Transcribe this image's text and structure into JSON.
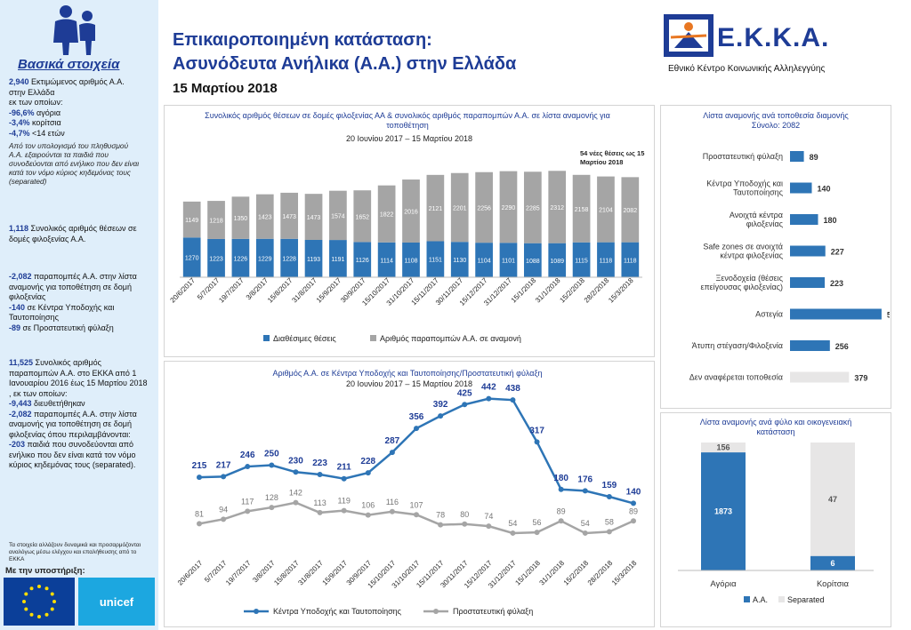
{
  "header": {
    "title_line1": "Επικαιροποιημένη κατάσταση:",
    "title_line2": "Ασυνόδευτα Ανήλικα (Α.Α.) στην Ελλάδα",
    "date": "15 Μαρτίου 2018",
    "logo_text": "Ε.Κ.Κ.Α.",
    "logo_subtitle": "Εθνικό Κέντρο Κοινωνικής Αλληλεγγύης"
  },
  "sidebar": {
    "title": "Βασικά στοιχεία",
    "b1_hl": "2,940",
    "b1_text": " Εκτιμώμενος αριθμός Α.Α. στην Ελλάδα",
    "b1_sub": "εκ των οποίων:",
    "b1_l1_hl": "-96,6%",
    "b1_l1": " αγόρια",
    "b1_l2_hl": "-3,4%",
    "b1_l2": " κορίτσια",
    "b1_l3_hl": "-4,7%",
    "b1_l3": " <14 ετών",
    "b1_italic": "Από τον υπολογισμό του πληθυσμού Α.Α. εξαιρούνται τα παιδιά που συνοδεύονται από ενήλικο που δεν είναι κατά τον νόμο κύριος κηδεμόνας τους (separated)",
    "b2_hl": "1,118",
    "b2_text": " Συνολικός αριθμός θέσεων σε δομές φιλοξενίας Α.Α.",
    "b3_l1_hl": "-2,082",
    "b3_l1": " παραπομπές Α.Α. στην λίστα αναμονής για τοποθέτηση σε δομή φιλοξενίας",
    "b3_l2_hl": "-140",
    "b3_l2": " σε Κέντρα Υποδοχής και Ταυτοποίησης",
    "b3_l3_hl": "-89",
    "b3_l3": " σε Προστατευτική φύλαξη",
    "b4_hl": "11,525",
    "b4_text": " Συνολικός αριθμός παραπομπών Α.Α. στο ΕΚΚΑ από 1 Ιανουαρίου 2016 έως 15 Μαρτίου 2018 , εκ των οποίων:",
    "b4_l1_hl": "-9,443",
    "b4_l1": " διευθετήθηκαν",
    "b4_l2_hl": "-2,082",
    "b4_l2": " παραπομπές Α.Α. στην λίστα αναμονής για τοποθέτηση σε δομή φιλοξενίας όπου περιλαμβάνονται:",
    "b4_l3_hl": "-203",
    "b4_l3": " παιδιά που συνοδεύονται από ενήλικο που δεν είναι κατά τον νόμο κύριος κηδεμόνας τους (separated).",
    "note": "Τα στοιχεία αλλάζουν δυναμικά και προσαρμόζονται αναλόγως μέσω ελέγχου και επαλήθευσης από το ΕΚΚΑ",
    "support": "Με την υποστήριξη:",
    "unicef": "unicef"
  },
  "chart_data": [
    {
      "type": "bar",
      "stacked": true,
      "title": "Συνολικός αριθμός θέσεων σε δομές φιλοξενίας ΑΑ & συνολικός αριθμός παραπομπών Α.Α. σε λίστα αναμονής για τοποθέτηση",
      "subtitle": "20 Ιουνίου 2017 – 15 Μαρτίου 2018",
      "annotation": "54 νέες θέσεις ως 15 Μαρτίου 2018",
      "categories": [
        "20/6/2017",
        "5/7/2017",
        "19/7/2017",
        "3/8/2017",
        "15/8/2017",
        "31/8/2017",
        "15/9/2017",
        "30/9/2017",
        "15/10/2017",
        "31/10/2017",
        "15/11/2017",
        "30/11/2017",
        "15/12/2017",
        "31/12/2017",
        "15/1/2018",
        "31/1/2018",
        "15/2/2018",
        "28/2/2018",
        "15/3/2018"
      ],
      "series": [
        {
          "name": "Διαθέσιμες θέσεις",
          "color": "#2e75b6",
          "values": [
            1270,
            1223,
            1226,
            1229,
            1228,
            1193,
            1191,
            1126,
            1114,
            1108,
            1151,
            1130,
            1104,
            1101,
            1088,
            1089,
            1115,
            1118,
            1118
          ]
        },
        {
          "name": "Αριθμός παραπομπών Α.Α. σε αναμονή",
          "color": "#a5a5a5",
          "values": [
            1149,
            1218,
            1350,
            1423,
            1473,
            1473,
            1574,
            1652,
            1822,
            2016,
            2121,
            2201,
            2256,
            2290,
            2285,
            2312,
            2158,
            2104,
            2082
          ]
        }
      ]
    },
    {
      "type": "line",
      "title": "Αριθμός Α.Α. σε Κέντρα Υποδοχής και Ταυτοποίησης/Προστατευτική φύλαξη",
      "subtitle": "20 Ιουνίου 2017 – 15 Μαρτίου 2018",
      "categories": [
        "20/6/2017",
        "5/7/2017",
        "19/7/2017",
        "3/8/2017",
        "15/8/2017",
        "31/8/2017",
        "15/9/2017",
        "30/9/2017",
        "15/10/2017",
        "31/10/2017",
        "15/11/2017",
        "30/11/2017",
        "15/12/2017",
        "31/12/2017",
        "15/1/2018",
        "31/1/2018",
        "15/2/2018",
        "28/2/2018",
        "15/3/2018"
      ],
      "series": [
        {
          "name": "Κέντρα Υποδοχής και Ταυτοποίησης",
          "color": "#2e75b6",
          "values": [
            215,
            217,
            246,
            250,
            230,
            223,
            211,
            228,
            287,
            356,
            392,
            425,
            442,
            438,
            317,
            180,
            176,
            159,
            140
          ]
        },
        {
          "name": "Προστατευτική φύλαξη",
          "color": "#a5a5a5",
          "values": [
            81,
            94,
            117,
            128,
            142,
            113,
            119,
            106,
            116,
            107,
            78,
            80,
            74,
            54,
            56,
            89,
            54,
            58,
            89
          ]
        }
      ]
    },
    {
      "type": "bar",
      "orientation": "horizontal",
      "title": "Λίστα αναμονής ανά τοποθεσία διαμονής",
      "subtitle": "Σύνολο: 2082",
      "categories": [
        "Προστατευτική φύλαξη",
        "Κέντρα Υποδοχής και Ταυτοποίησης",
        "Ανοιχτά κέντρα φιλοξενίας",
        "Safe zones σε ανοιχτά κέντρα φιλοξενίας",
        "Ξενοδοχεία (θέσεις επείγουσας φιλοξενίας)",
        "Αστεγία",
        "Άτυπη στέγαση/Φιλοξενία",
        "Δεν αναφέρεται τοποθεσία"
      ],
      "values": [
        89,
        140,
        180,
        227,
        223,
        588,
        256,
        379
      ],
      "colors": [
        "#2e75b6",
        "#2e75b6",
        "#2e75b6",
        "#2e75b6",
        "#2e75b6",
        "#2e75b6",
        "#2e75b6",
        "#e7e6e6"
      ]
    },
    {
      "type": "bar",
      "stacked": true,
      "title": "Λίστα αναμονής ανά φύλο και οικογενειακή κατάσταση",
      "categories": [
        "Αγόρια",
        "Κορίτσια"
      ],
      "series": [
        {
          "name": "Α.Α.",
          "color": "#2e75b6",
          "values": [
            1873,
            6
          ]
        },
        {
          "name": "Separated",
          "color": "#e7e6e6",
          "values": [
            156,
            47
          ]
        }
      ]
    }
  ]
}
